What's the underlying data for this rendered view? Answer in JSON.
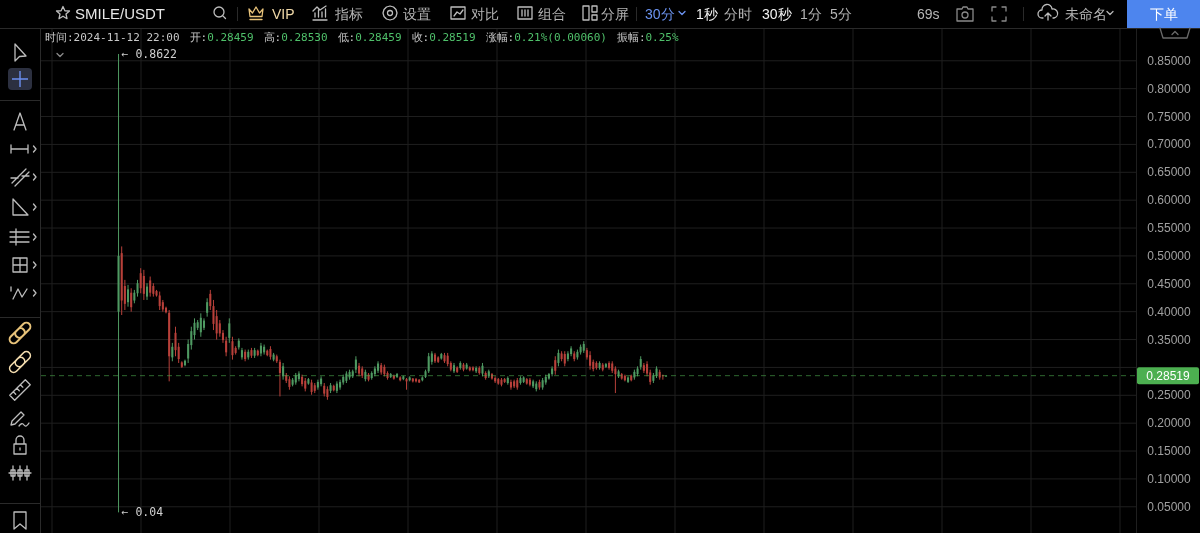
{
  "chart_data": {
    "type": "candlestick",
    "title": "SMILE/USDT",
    "categories": [
      null,
      null,
      null,
      null,
      null,
      null,
      null,
      null,
      null,
      null,
      null,
      null,
      null,
      null,
      null,
      null,
      null,
      null,
      null,
      null,
      null,
      null,
      null,
      null,
      null,
      null,
      null,
      null,
      null,
      null,
      null,
      null,
      null,
      null,
      null,
      null,
      null,
      null,
      null,
      null,
      null,
      null,
      null,
      null,
      null,
      null,
      null,
      null,
      null,
      null,
      null,
      null,
      null,
      null,
      null,
      null,
      null,
      null,
      null,
      null,
      null,
      null,
      null,
      null,
      null,
      null,
      null,
      null,
      null,
      null,
      null,
      null,
      null,
      null,
      null,
      null,
      null,
      null,
      null,
      null,
      null,
      null,
      null,
      null,
      null,
      null,
      null,
      null,
      null,
      null,
      null,
      null,
      null,
      null,
      null,
      null,
      null,
      null,
      null,
      null,
      null,
      null,
      null,
      null,
      null,
      null,
      null,
      null,
      null,
      null,
      null,
      null,
      null,
      null,
      null,
      null,
      null,
      null,
      null,
      null,
      null,
      null,
      null,
      null,
      null,
      null,
      null,
      null,
      null,
      null,
      null,
      null,
      null,
      null,
      null,
      null,
      null,
      null,
      null,
      null,
      null,
      null,
      null,
      null,
      null,
      null,
      null,
      null,
      null,
      null,
      null,
      null,
      null,
      null,
      null,
      null,
      null,
      null,
      null,
      null,
      null,
      null,
      null,
      null,
      null,
      null,
      null,
      null,
      null,
      null,
      null,
      null,
      null,
      null,
      null,
      null,
      null,
      null,
      null,
      null,
      null,
      null,
      null,
      null,
      null,
      null,
      null,
      null,
      null,
      null,
      null,
      null,
      null,
      null,
      null,
      null,
      null,
      null,
      null,
      null,
      null,
      null,
      null,
      null,
      null,
      null,
      null,
      null,
      null,
      null,
      null,
      null,
      null,
      null,
      null,
      null,
      null,
      null,
      null,
      null,
      null,
      null,
      null,
      null,
      null,
      null,
      null,
      null,
      null,
      null,
      null,
      null,
      null,
      null,
      null,
      null,
      null,
      null,
      null,
      null,
      null,
      null,
      null,
      null,
      null,
      null,
      null,
      null,
      null,
      null,
      null,
      null,
      null,
      null,
      null,
      null,
      null,
      null,
      null,
      null,
      null,
      null,
      null,
      null,
      null,
      null,
      null,
      null,
      null,
      null,
      null,
      null,
      null,
      null,
      null,
      null,
      null,
      null,
      null,
      null,
      null,
      null,
      null,
      null,
      null,
      null,
      null,
      null,
      null,
      null,
      null,
      null,
      null,
      null,
      null,
      null,
      null,
      null,
      null,
      null,
      null,
      null,
      null,
      null,
      null,
      null,
      null,
      null,
      null,
      null,
      null,
      null,
      null,
      null,
      null,
      null,
      null,
      null,
      null,
      null,
      null,
      null,
      null,
      null,
      null,
      null,
      null,
      null,
      null,
      null,
      null,
      null,
      null,
      null,
      null,
      null,
      null,
      null,
      null,
      null,
      null,
      null,
      null,
      null,
      null,
      null
    ],
    "ohlc": [
      null,
      null,
      null,
      null,
      null,
      null,
      null,
      null,
      null,
      null,
      null,
      null,
      null,
      null,
      null,
      null,
      null,
      null,
      null,
      null,
      null,
      null,
      null,
      null,
      [
        0.4,
        0.8622,
        0.04,
        0.5
      ],
      [
        0.505,
        0.517,
        0.394,
        0.42
      ],
      [
        0.446,
        0.457,
        0.403,
        0.414
      ],
      [
        0.417,
        0.448,
        0.409,
        0.44
      ],
      [
        0.434,
        0.442,
        0.4,
        0.408
      ],
      [
        0.42,
        0.439,
        0.415,
        0.434
      ],
      [
        0.433,
        0.457,
        0.427,
        0.451
      ],
      [
        0.469,
        0.478,
        0.433,
        0.442
      ],
      [
        0.464,
        0.475,
        0.421,
        0.432
      ],
      [
        0.427,
        0.451,
        0.421,
        0.445
      ],
      [
        0.456,
        0.463,
        0.427,
        0.434
      ],
      [
        0.446,
        0.451,
        0.427,
        0.432
      ],
      [
        0.437,
        0.439,
        0.427,
        0.429
      ],
      [
        0.429,
        0.436,
        0.403,
        0.41
      ],
      [
        0.417,
        0.421,
        0.4,
        0.404
      ],
      [
        0.407,
        0.409,
        0.397,
        0.399
      ],
      [
        0.398,
        0.403,
        0.275,
        0.32
      ],
      [
        0.318,
        0.344,
        0.311,
        0.337
      ],
      [
        0.362,
        0.373,
        0.32,
        0.331
      ],
      [
        0.337,
        0.344,
        0.308,
        0.315
      ],
      [
        0.309,
        0.311,
        0.299,
        0.301
      ],
      [
        0.304,
        0.314,
        0.302,
        0.312
      ],
      [
        0.316,
        0.35,
        0.308,
        0.342
      ],
      [
        0.34,
        0.373,
        0.332,
        0.365
      ],
      [
        0.358,
        0.388,
        0.35,
        0.38
      ],
      [
        0.371,
        0.385,
        0.367,
        0.381
      ],
      [
        0.363,
        0.397,
        0.355,
        0.389
      ],
      [
        0.371,
        0.388,
        0.367,
        0.384
      ],
      [
        0.398,
        0.424,
        0.391,
        0.417
      ],
      [
        0.432,
        0.439,
        0.403,
        0.41
      ],
      [
        0.41,
        0.421,
        0.367,
        0.378
      ],
      [
        0.392,
        0.403,
        0.35,
        0.361
      ],
      [
        0.379,
        0.385,
        0.355,
        0.361
      ],
      [
        0.362,
        0.367,
        0.344,
        0.349
      ],
      [
        0.348,
        0.355,
        0.32,
        0.327
      ],
      [
        0.353,
        0.388,
        0.344,
        0.379
      ],
      [
        0.347,
        0.355,
        0.314,
        0.322
      ],
      [
        0.335,
        0.338,
        0.323,
        0.326
      ],
      [
        0.336,
        0.352,
        0.332,
        0.348
      ],
      [
        0.318,
        0.335,
        0.314,
        0.331
      ],
      [
        0.328,
        0.332,
        0.311,
        0.315
      ],
      [
        0.318,
        0.332,
        0.314,
        0.328
      ],
      [
        0.331,
        0.335,
        0.317,
        0.321
      ],
      [
        0.321,
        0.335,
        0.317,
        0.331
      ],
      [
        0.33,
        0.332,
        0.32,
        0.322
      ],
      [
        0.325,
        0.344,
        0.32,
        0.339
      ],
      [
        0.327,
        0.341,
        0.323,
        0.337
      ],
      [
        0.33,
        0.332,
        0.32,
        0.322
      ],
      [
        0.333,
        0.338,
        0.314,
        0.319
      ],
      [
        0.314,
        0.326,
        0.311,
        0.323
      ],
      [
        0.32,
        0.323,
        0.308,
        0.311
      ],
      [
        0.31,
        0.314,
        0.248,
        0.29
      ],
      [
        0.284,
        0.308,
        0.278,
        0.302
      ],
      [
        0.286,
        0.29,
        0.272,
        0.276
      ],
      [
        0.279,
        0.284,
        0.26,
        0.265
      ],
      [
        0.269,
        0.281,
        0.266,
        0.278
      ],
      [
        0.273,
        0.29,
        0.269,
        0.286
      ],
      [
        0.279,
        0.293,
        0.275,
        0.289
      ],
      [
        0.283,
        0.287,
        0.266,
        0.27
      ],
      [
        0.276,
        0.281,
        0.257,
        0.262
      ],
      [
        0.271,
        0.281,
        0.269,
        0.279
      ],
      [
        0.273,
        0.278,
        0.251,
        0.256
      ],
      [
        0.268,
        0.272,
        0.254,
        0.258
      ],
      [
        0.264,
        0.278,
        0.26,
        0.274
      ],
      [
        0.27,
        0.284,
        0.266,
        0.28
      ],
      [
        0.267,
        0.272,
        0.248,
        0.253
      ],
      [
        0.261,
        0.266,
        0.242,
        0.247
      ],
      [
        0.258,
        0.272,
        0.254,
        0.268
      ],
      [
        0.267,
        0.269,
        0.257,
        0.259
      ],
      [
        0.258,
        0.275,
        0.254,
        0.271
      ],
      [
        0.264,
        0.278,
        0.26,
        0.274
      ],
      [
        0.273,
        0.287,
        0.269,
        0.283
      ],
      [
        0.276,
        0.293,
        0.272,
        0.289
      ],
      [
        0.282,
        0.296,
        0.278,
        0.292
      ],
      [
        0.284,
        0.296,
        0.281,
        0.293
      ],
      [
        0.296,
        0.32,
        0.29,
        0.314
      ],
      [
        0.303,
        0.308,
        0.284,
        0.289
      ],
      [
        0.298,
        0.302,
        0.281,
        0.285
      ],
      [
        0.279,
        0.296,
        0.275,
        0.292
      ],
      [
        0.287,
        0.29,
        0.275,
        0.278
      ],
      [
        0.281,
        0.293,
        0.278,
        0.29
      ],
      [
        0.288,
        0.302,
        0.284,
        0.298
      ],
      [
        0.294,
        0.311,
        0.29,
        0.307
      ],
      [
        0.304,
        0.308,
        0.287,
        0.291
      ],
      [
        0.301,
        0.305,
        0.284,
        0.288
      ],
      [
        0.29,
        0.293,
        0.278,
        0.281
      ],
      [
        0.283,
        0.29,
        0.281,
        0.288
      ],
      [
        0.285,
        0.287,
        0.278,
        0.28
      ],
      [
        0.283,
        0.29,
        0.281,
        0.288
      ],
      [
        0.282,
        0.284,
        0.275,
        0.277
      ],
      [
        0.279,
        0.285,
        0.277,
        0.284
      ],
      [
        0.279,
        0.281,
        0.26,
        0.275
      ],
      [
        0.277,
        0.284,
        0.275,
        0.282
      ],
      [
        0.28,
        0.281,
        0.273,
        0.275
      ],
      [
        0.279,
        0.281,
        0.273,
        0.275
      ],
      [
        0.278,
        0.279,
        0.272,
        0.273
      ],
      [
        0.277,
        0.284,
        0.275,
        0.282
      ],
      [
        0.283,
        0.296,
        0.281,
        0.293
      ],
      [
        0.293,
        0.326,
        0.29,
        0.32
      ],
      [
        0.31,
        0.329,
        0.305,
        0.325
      ],
      [
        0.323,
        0.326,
        0.308,
        0.311
      ],
      [
        0.318,
        0.32,
        0.308,
        0.31
      ],
      [
        0.316,
        0.326,
        0.314,
        0.324
      ],
      [
        0.322,
        0.326,
        0.308,
        0.311
      ],
      [
        0.321,
        0.326,
        0.302,
        0.306
      ],
      [
        0.308,
        0.311,
        0.293,
        0.296
      ],
      [
        0.293,
        0.308,
        0.29,
        0.304
      ],
      [
        0.3,
        0.302,
        0.29,
        0.292
      ],
      [
        0.299,
        0.311,
        0.296,
        0.308
      ],
      [
        0.305,
        0.308,
        0.293,
        0.296
      ],
      [
        0.298,
        0.308,
        0.296,
        0.305
      ],
      [
        0.3,
        0.302,
        0.293,
        0.295
      ],
      [
        0.3,
        0.302,
        0.293,
        0.295
      ],
      [
        0.293,
        0.302,
        0.29,
        0.299
      ],
      [
        0.299,
        0.302,
        0.287,
        0.29
      ],
      [
        0.289,
        0.308,
        0.284,
        0.303
      ],
      [
        0.29,
        0.293,
        0.278,
        0.281
      ],
      [
        0.284,
        0.296,
        0.281,
        0.293
      ],
      [
        0.288,
        0.29,
        0.278,
        0.28
      ],
      [
        0.281,
        0.284,
        0.272,
        0.275
      ],
      [
        0.279,
        0.281,
        0.269,
        0.271
      ],
      [
        0.278,
        0.281,
        0.266,
        0.269
      ],
      [
        0.279,
        0.281,
        0.272,
        0.274
      ],
      [
        0.272,
        0.284,
        0.269,
        0.281
      ],
      [
        0.274,
        0.278,
        0.26,
        0.264
      ],
      [
        0.275,
        0.278,
        0.263,
        0.266
      ],
      [
        0.277,
        0.281,
        0.26,
        0.264
      ],
      [
        0.272,
        0.284,
        0.269,
        0.281
      ],
      [
        0.274,
        0.284,
        0.272,
        0.282
      ],
      [
        0.279,
        0.281,
        0.269,
        0.271
      ],
      [
        0.278,
        0.281,
        0.266,
        0.269
      ],
      [
        0.266,
        0.278,
        0.263,
        0.275
      ],
      [
        0.261,
        0.275,
        0.257,
        0.271
      ],
      [
        0.274,
        0.278,
        0.26,
        0.264
      ],
      [
        0.264,
        0.281,
        0.26,
        0.277
      ],
      [
        0.273,
        0.287,
        0.269,
        0.283
      ],
      [
        0.28,
        0.29,
        0.278,
        0.288
      ],
      [
        0.288,
        0.302,
        0.284,
        0.298
      ],
      [
        0.313,
        0.32,
        0.287,
        0.294
      ],
      [
        0.308,
        0.332,
        0.302,
        0.326
      ],
      [
        0.325,
        0.329,
        0.311,
        0.315
      ],
      [
        0.324,
        0.329,
        0.302,
        0.307
      ],
      [
        0.315,
        0.329,
        0.311,
        0.325
      ],
      [
        0.324,
        0.338,
        0.32,
        0.334
      ],
      [
        0.325,
        0.329,
        0.311,
        0.315
      ],
      [
        0.318,
        0.332,
        0.314,
        0.328
      ],
      [
        0.327,
        0.341,
        0.323,
        0.337
      ],
      [
        0.33,
        0.347,
        0.326,
        0.342
      ],
      [
        0.331,
        0.335,
        0.314,
        0.318
      ],
      [
        0.322,
        0.329,
        0.296,
        0.303
      ],
      [
        0.31,
        0.314,
        0.293,
        0.297
      ],
      [
        0.308,
        0.311,
        0.296,
        0.299
      ],
      [
        0.299,
        0.311,
        0.296,
        0.308
      ],
      [
        0.305,
        0.308,
        0.293,
        0.296
      ],
      [
        0.301,
        0.308,
        0.299,
        0.306
      ],
      [
        0.308,
        0.311,
        0.296,
        0.299
      ],
      [
        0.307,
        0.311,
        0.29,
        0.294
      ],
      [
        0.298,
        0.302,
        0.254,
        0.288
      ],
      [
        0.284,
        0.296,
        0.281,
        0.293
      ],
      [
        0.288,
        0.29,
        0.278,
        0.28
      ],
      [
        0.285,
        0.287,
        0.275,
        0.277
      ],
      [
        0.274,
        0.284,
        0.272,
        0.282
      ],
      [
        0.285,
        0.287,
        0.275,
        0.277
      ],
      [
        0.282,
        0.296,
        0.278,
        0.292
      ],
      [
        0.288,
        0.302,
        0.284,
        0.298
      ],
      [
        0.301,
        0.32,
        0.296,
        0.315
      ],
      [
        0.304,
        0.308,
        0.29,
        0.294
      ],
      [
        0.306,
        0.311,
        0.284,
        0.289
      ],
      [
        0.291,
        0.296,
        0.269,
        0.274
      ],
      [
        0.276,
        0.29,
        0.272,
        0.286
      ],
      [
        0.285,
        0.302,
        0.281,
        0.298
      ],
      [
        0.292,
        0.296,
        0.278,
        0.282
      ],
      [
        0.286,
        0.287,
        0.278,
        0.285
      ],
      [
        0.28459,
        0.2853,
        0.28459,
        0.28519
      ],
      null,
      null,
      null,
      null,
      null,
      null,
      null,
      null,
      null,
      null,
      null,
      null,
      null,
      null,
      null,
      null,
      null,
      null,
      null,
      null,
      null,
      null,
      null,
      null,
      null,
      null,
      null,
      null,
      null,
      null,
      null,
      null,
      null,
      null,
      null,
      null,
      null,
      null,
      null,
      null,
      null,
      null,
      null,
      null,
      null,
      null,
      null,
      null,
      null,
      null,
      null,
      null,
      null,
      null,
      null,
      null,
      null,
      null,
      null,
      null,
      null,
      null,
      null,
      null,
      null,
      null,
      null,
      null,
      null,
      null,
      null,
      null,
      null,
      null,
      null,
      null,
      null,
      null,
      null,
      null,
      null,
      null,
      null,
      null,
      null,
      null,
      null,
      null,
      null,
      null,
      null,
      null,
      null,
      null,
      null,
      null,
      null,
      null,
      null,
      null,
      null,
      null,
      null,
      null,
      null,
      null,
      null,
      null,
      null,
      null,
      null,
      null,
      null,
      null,
      null,
      null,
      null,
      null,
      null,
      null,
      null,
      null,
      null,
      null,
      null,
      null,
      null,
      null,
      null,
      null,
      null,
      null,
      null,
      null,
      null,
      null,
      null,
      null,
      null,
      null,
      null,
      null,
      null,
      null,
      null,
      null,
      null,
      null
    ],
    "colors": [
      null,
      null,
      null,
      null,
      null,
      null,
      null,
      null,
      null,
      null,
      null,
      null,
      null,
      null,
      null,
      null,
      null,
      null,
      null,
      null,
      null,
      null,
      null,
      null,
      "#4f9a62",
      "#b8403a",
      "#b8403a",
      "#4f9a62",
      "#b8403a",
      "#4f9a62",
      "#4f9a62",
      "#b8403a",
      "#b8403a",
      "#4f9a62",
      "#b8403a",
      "#b8403a",
      "#b8403a",
      "#b8403a",
      "#b8403a",
      "#b8403a",
      "#b8403a",
      "#4f9a62",
      "#b8403a",
      "#b8403a",
      "#b8403a",
      "#4f9a62",
      "#4f9a62",
      "#4f9a62",
      "#4f9a62",
      "#4f9a62",
      "#4f9a62",
      "#4f9a62",
      "#4f9a62",
      "#b8403a",
      "#b8403a",
      "#b8403a",
      "#b8403a",
      "#b8403a",
      "#b8403a",
      "#4f9a62",
      "#b8403a",
      "#b8403a",
      "#4f9a62",
      "#4f9a62",
      "#b8403a",
      "#4f9a62",
      "#b8403a",
      "#4f9a62",
      "#b8403a",
      "#4f9a62",
      "#4f9a62",
      "#b8403a",
      "#b8403a",
      "#4f9a62",
      "#b8403a",
      "#b8403a",
      "#4f9a62",
      "#b8403a",
      "#b8403a",
      "#4f9a62",
      "#4f9a62",
      "#4f9a62",
      "#b8403a",
      "#b8403a",
      "#4f9a62",
      "#b8403a",
      "#b8403a",
      "#4f9a62",
      "#4f9a62",
      "#b8403a",
      "#b8403a",
      "#4f9a62",
      "#b8403a",
      "#4f9a62",
      "#4f9a62",
      "#4f9a62",
      "#4f9a62",
      "#4f9a62",
      "#4f9a62",
      "#4f9a62",
      "#b8403a",
      "#b8403a",
      "#4f9a62",
      "#b8403a",
      "#4f9a62",
      "#4f9a62",
      "#4f9a62",
      "#b8403a",
      "#b8403a",
      "#b8403a",
      "#4f9a62",
      "#b8403a",
      "#4f9a62",
      "#b8403a",
      "#4f9a62",
      "#b8403a",
      "#4f9a62",
      "#b8403a",
      "#b8403a",
      "#b8403a",
      "#4f9a62",
      "#4f9a62",
      "#4f9a62",
      "#4f9a62",
      "#b8403a",
      "#b8403a",
      "#4f9a62",
      "#b8403a",
      "#b8403a",
      "#b8403a",
      "#4f9a62",
      "#b8403a",
      "#4f9a62",
      "#b8403a",
      "#4f9a62",
      "#b8403a",
      "#b8403a",
      "#4f9a62",
      "#b8403a",
      "#4f9a62",
      "#b8403a",
      "#4f9a62",
      "#b8403a",
      "#b8403a",
      "#b8403a",
      "#b8403a",
      "#b8403a",
      "#4f9a62",
      "#b8403a",
      "#b8403a",
      "#b8403a",
      "#4f9a62",
      "#4f9a62",
      "#b8403a",
      "#b8403a",
      "#4f9a62",
      "#4f9a62",
      "#b8403a",
      "#4f9a62",
      "#4f9a62",
      "#4f9a62",
      "#4f9a62",
      "#b8403a",
      "#4f9a62",
      "#b8403a",
      "#b8403a",
      "#4f9a62",
      "#4f9a62",
      "#b8403a",
      "#4f9a62",
      "#4f9a62",
      "#4f9a62",
      "#b8403a",
      "#b8403a",
      "#b8403a",
      "#b8403a",
      "#4f9a62",
      "#b8403a",
      "#4f9a62",
      "#b8403a",
      "#b8403a",
      "#b8403a",
      "#4f9a62",
      "#b8403a",
      "#b8403a",
      "#4f9a62",
      "#b8403a",
      "#4f9a62",
      "#4f9a62",
      "#4f9a62",
      "#b8403a",
      "#b8403a",
      "#b8403a",
      "#4f9a62",
      "#4f9a62",
      "#b8403a",
      "#b8403a",
      "#4f9a62",
      null,
      null,
      null,
      null,
      null,
      null,
      null,
      null,
      null,
      null,
      null,
      null,
      null,
      null,
      null,
      null,
      null,
      null,
      null,
      null,
      null,
      null,
      null,
      null,
      null,
      null,
      null,
      null,
      null,
      null,
      null,
      null,
      null,
      null,
      null,
      null,
      null,
      null,
      null,
      null,
      null,
      null,
      null,
      null,
      null,
      null,
      null,
      null,
      null,
      null,
      null,
      null,
      null,
      null,
      null,
      null,
      null,
      null,
      null,
      null,
      null,
      null,
      null,
      null,
      null,
      null,
      null,
      null,
      null,
      null,
      null,
      null,
      null,
      null,
      null,
      null,
      null,
      null,
      null,
      null,
      null,
      null,
      null,
      null,
      null,
      null,
      null,
      null,
      null,
      null,
      null,
      null,
      null,
      null,
      null,
      null,
      null,
      null,
      null,
      null,
      null,
      null,
      null,
      null,
      null,
      null,
      null,
      null,
      null,
      null,
      null,
      null,
      null,
      null,
      null,
      null,
      null,
      null,
      null,
      null,
      null,
      null,
      null,
      null,
      null,
      null,
      null,
      null,
      null,
      null,
      null,
      null,
      null,
      null,
      null,
      null,
      null,
      null,
      null,
      null,
      null,
      null,
      null,
      null,
      null,
      null,
      null,
      null
    ],
    "ylim": [
      0.003,
      0.907
    ],
    "yticks": [
      {
        "value": 0.05,
        "label": "0.05000"
      },
      {
        "value": 0.1,
        "label": "0.10000"
      },
      {
        "value": 0.15,
        "label": "0.15000"
      },
      {
        "value": 0.2,
        "label": "0.20000"
      },
      {
        "value": 0.25,
        "label": "0.25000"
      },
      {
        "value": 0.3,
        "label": null
      },
      {
        "value": 0.35,
        "label": "0.35000"
      },
      {
        "value": 0.4,
        "label": "0.40000"
      },
      {
        "value": 0.45,
        "label": "0.45000"
      },
      {
        "value": 0.5,
        "label": "0.50000"
      },
      {
        "value": 0.55,
        "label": "0.55000"
      },
      {
        "value": 0.6,
        "label": "0.60000"
      },
      {
        "value": 0.65,
        "label": "0.65000"
      },
      {
        "value": 0.7,
        "label": "0.70000"
      },
      {
        "value": 0.75,
        "label": "0.75000"
      },
      {
        "value": 0.8,
        "label": "0.80000"
      },
      {
        "value": 0.85,
        "label": "0.85000"
      }
    ],
    "grid": true,
    "tick_labels": "y",
    "ref_lines": [
      {
        "axis": "y",
        "value": 0.28519,
        "label": "0.28519",
        "color": "#4caf50",
        "line_style": "dashed"
      }
    ],
    "annotations": [
      "VIP",
      "指标",
      "设置",
      "对比",
      "组合",
      "分屏",
      "30分",
      "1秒",
      "分时",
      "30秒",
      "1分",
      "5分",
      "69s",
      "未命名",
      "下单",
      "时间:2024-11-12 22:00",
      "开:0.28459",
      "高:0.28530",
      "低:0.28459",
      "收:0.28519",
      "涨幅:0.21%(0.00060)",
      "振幅:0.25%",
      "← 0.8622",
      "← 0.04"
    ]
  }
}
